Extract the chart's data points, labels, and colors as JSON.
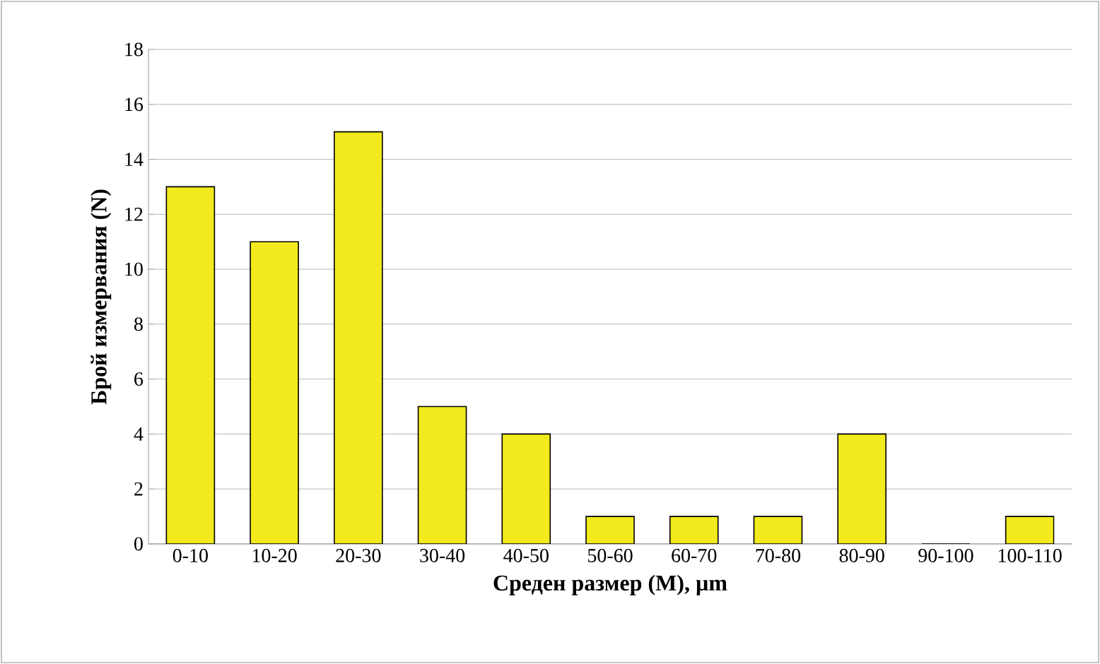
{
  "chart_data": {
    "type": "bar",
    "xlabel": "Среден размер (M), µm",
    "ylabel": "Брой измервания (N)",
    "categories": [
      "0-10",
      "10-20",
      "20-30",
      "30-40",
      "40-50",
      "50-60",
      "60-70",
      "70-80",
      "80-90",
      "90-100",
      "100-110"
    ],
    "values": [
      13,
      11,
      15,
      5,
      4,
      1,
      1,
      1,
      4,
      0,
      1
    ],
    "color": "#f2ea1c",
    "ylim": [
      0,
      18
    ],
    "yticks": [
      0,
      2,
      4,
      6,
      8,
      10,
      12,
      14,
      16,
      18
    ],
    "grid": "y"
  }
}
